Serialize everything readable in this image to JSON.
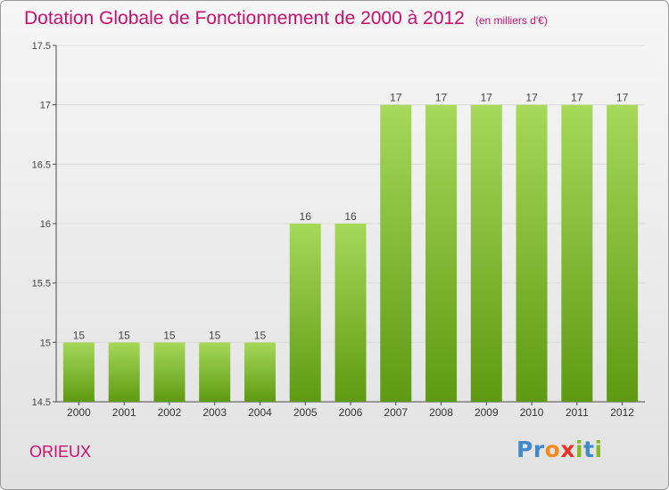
{
  "header": {
    "title": "Dotation Globale de Fonctionnement de 2000 à 2012",
    "unit": "(en milliers d'€)"
  },
  "footer": {
    "commune": "ORIEUX",
    "brand": [
      "P",
      "r",
      "o",
      "x",
      "i",
      "t",
      "i"
    ]
  },
  "colors": {
    "title": "#c8106e",
    "bar_top": "#a6d85a",
    "bar_bottom": "#5e9a12",
    "axis": "#4a4a4a",
    "grid": "#dcdcdc"
  },
  "chart_data": {
    "type": "bar",
    "title": "Dotation Globale de Fonctionnement de 2000 à 2012",
    "subtitle": "(en milliers d'€)",
    "categories": [
      "2000",
      "2001",
      "2002",
      "2003",
      "2004",
      "2005",
      "2006",
      "2007",
      "2008",
      "2009",
      "2010",
      "2011",
      "2012"
    ],
    "values": [
      15,
      15,
      15,
      15,
      15,
      16,
      16,
      17,
      17,
      17,
      17,
      17,
      17
    ],
    "ylim": [
      14.5,
      17.5
    ],
    "yticks": [
      "14.5",
      "15",
      "15.5",
      "16",
      "16.5",
      "17",
      "17.5"
    ],
    "grid": true,
    "xlabel": "",
    "ylabel": ""
  }
}
